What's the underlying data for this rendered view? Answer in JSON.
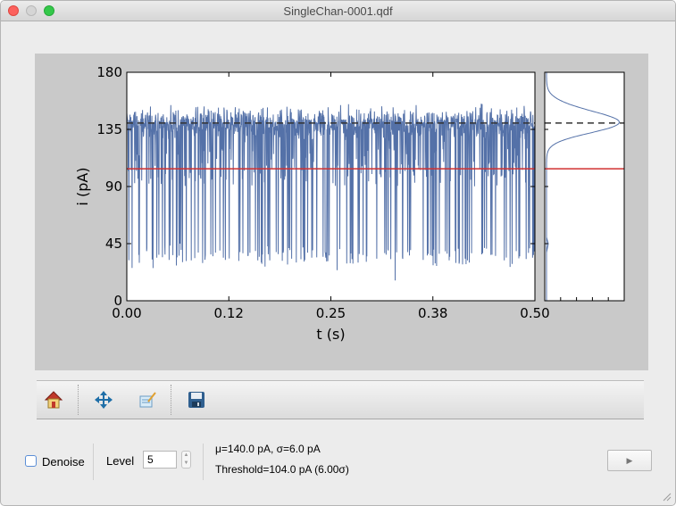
{
  "window": {
    "title": "SingleChan-0001.qdf"
  },
  "chart_data": {
    "type": "line",
    "xlabel": "t (s)",
    "ylabel": "i (pA)",
    "xlim": [
      0.0,
      0.5
    ],
    "ylim": [
      0,
      180
    ],
    "x_tick_labels": [
      "0.00",
      "0.12",
      "0.25",
      "0.38",
      "0.50"
    ],
    "y_tick_labels": [
      "0",
      "45",
      "90",
      "135",
      "180"
    ],
    "series": [
      {
        "color": "#5471a8",
        "baseline_mean": 140.0,
        "noise_sd": 6.0,
        "typical_peak": 160,
        "closing_level": 35,
        "minimum": 16
      }
    ],
    "reference_lines": [
      {
        "style": "dashed",
        "color": "#333333",
        "y": 140.0
      },
      {
        "style": "solid",
        "color": "#d03030",
        "y": 104.0
      }
    ],
    "histogram": {
      "orientation": "horizontal",
      "peak_at": 140.0,
      "color": "#5471a8"
    }
  },
  "toolbar": {
    "icons": [
      "home-icon",
      "pan-icon",
      "edit-axes-icon",
      "save-icon"
    ]
  },
  "controls": {
    "denoise_label": "Denoise",
    "level_label": "Level",
    "level_value": "5",
    "stats_line1": "μ=140.0 pA, σ=6.0 pA",
    "stats_line2": "Threshold=104.0 pA (6.00σ)",
    "play_icon": "▶"
  }
}
